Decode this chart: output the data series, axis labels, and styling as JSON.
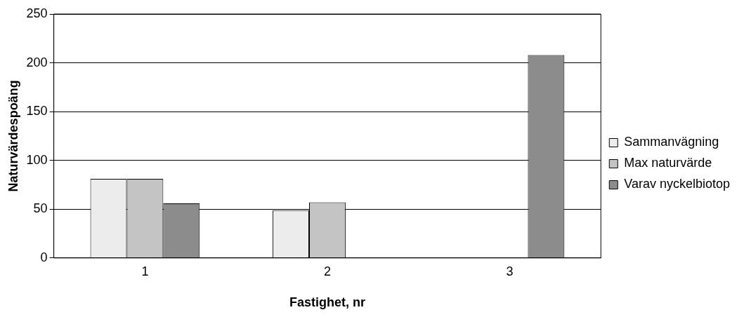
{
  "chart_data": {
    "type": "bar",
    "xlabel": "Fastighet, nr",
    "ylabel": "Naturvärdespoäng",
    "categories": [
      "1",
      "2",
      "3"
    ],
    "series": [
      {
        "name": "Sammanvägning",
        "color": "#ececec",
        "values": [
          81,
          49,
          null
        ]
      },
      {
        "name": "Max naturvärde",
        "color": "#c4c4c4",
        "values": [
          81,
          57,
          null
        ]
      },
      {
        "name": "Varav nyckelbiotop",
        "color": "#8c8c8c",
        "values": [
          56,
          null,
          208
        ]
      }
    ],
    "ylim": [
      0,
      250
    ],
    "yticks": [
      0,
      50,
      100,
      150,
      200,
      250
    ],
    "grid": "y",
    "legend": "right"
  }
}
